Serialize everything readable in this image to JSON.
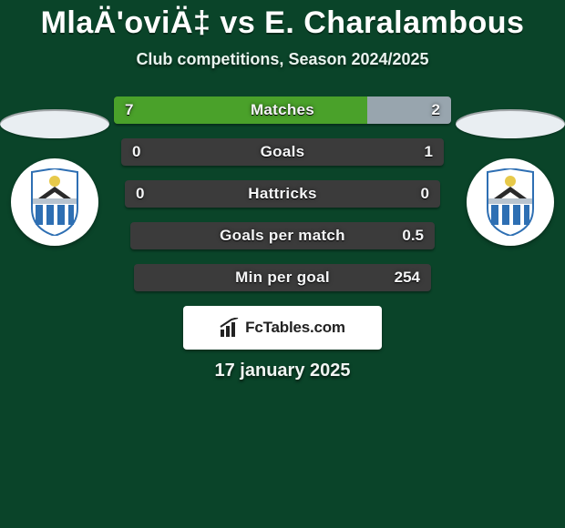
{
  "colors": {
    "page_bg": "#0a4429",
    "row_bg": "#3b3b3b",
    "left_fill": "#4aa12a",
    "right_fill": "#98a5ae",
    "badge_bg": "#ffffff",
    "ellipse_bg": "#e9eef2",
    "crest_blue": "#2e6fb3",
    "crest_bird": "#2a2a2a",
    "crest_sun": "#e7c94a",
    "crest_banner": "#b9c4cf",
    "brand_text": "#222222"
  },
  "title": "MlaÄ'oviÄ‡ vs E. Charalambous",
  "subtitle": "Club competitions, Season 2024/2025",
  "date": "17 january 2025",
  "brand": "FcTables.com",
  "rows": [
    {
      "label": "Matches",
      "left": "7",
      "right": "2",
      "left_pct": 75,
      "right_pct": 25,
      "left_indent": 0,
      "right_indent": 0
    },
    {
      "label": "Goals",
      "left": "0",
      "right": "1",
      "left_pct": 0,
      "right_pct": 0,
      "left_indent": 8,
      "right_indent": 8
    },
    {
      "label": "Hattricks",
      "left": "0",
      "right": "0",
      "left_pct": 0,
      "right_pct": 0,
      "left_indent": 12,
      "right_indent": 12
    },
    {
      "label": "Goals per match",
      "left": "",
      "right": "0.5",
      "left_pct": 0,
      "right_pct": 0,
      "left_indent": 18,
      "right_indent": 18
    },
    {
      "label": "Min per goal",
      "left": "",
      "right": "254",
      "left_pct": 0,
      "right_pct": 0,
      "left_indent": 22,
      "right_indent": 22
    }
  ]
}
